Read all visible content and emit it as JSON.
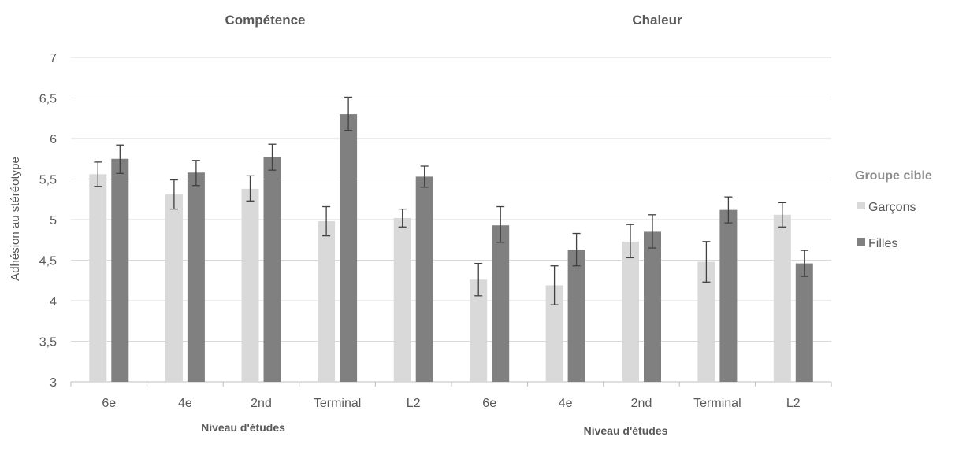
{
  "chart_data": {
    "type": "bar",
    "ylabel": "Adhésion au stéréotype",
    "ylim": [
      3,
      7
    ],
    "yticks": [
      "3",
      "3,5",
      "4",
      "4,5",
      "5",
      "5,5",
      "6",
      "6,5",
      "7"
    ],
    "grid": true,
    "legend": {
      "title": "Groupe cible",
      "position": "right",
      "entries": [
        {
          "name": "Garçons",
          "color": "#d9d9d9"
        },
        {
          "name": "Filles",
          "color": "#808080"
        }
      ]
    },
    "panels": [
      {
        "title": "Compétence",
        "xlabel": "Niveau d'études",
        "categories": [
          "6e",
          "4e",
          "2nd",
          "Terminal",
          "L2"
        ],
        "series": [
          {
            "name": "Garçons",
            "color": "#d9d9d9",
            "values": [
              5.56,
              5.31,
              5.38,
              4.98,
              5.02
            ],
            "error_low": [
              5.41,
              5.13,
              5.23,
              4.8,
              4.91
            ],
            "error_high": [
              5.71,
              5.49,
              5.54,
              5.16,
              5.13
            ]
          },
          {
            "name": "Filles",
            "color": "#808080",
            "values": [
              5.75,
              5.58,
              5.77,
              6.3,
              5.53
            ],
            "error_low": [
              5.57,
              5.42,
              5.61,
              6.1,
              5.4
            ],
            "error_high": [
              5.92,
              5.73,
              5.93,
              6.51,
              5.66
            ]
          }
        ]
      },
      {
        "title": "Chaleur",
        "xlabel": "Niveau d'études",
        "categories": [
          "6e",
          "4e",
          "2nd",
          "Terminal",
          "L2"
        ],
        "series": [
          {
            "name": "Garçons",
            "color": "#d9d9d9",
            "values": [
              4.26,
              4.19,
              4.73,
              4.48,
              5.06
            ],
            "error_low": [
              4.06,
              3.95,
              4.53,
              4.23,
              4.91
            ],
            "error_high": [
              4.46,
              4.43,
              4.94,
              4.73,
              5.21
            ]
          },
          {
            "name": "Filles",
            "color": "#808080",
            "values": [
              4.93,
              4.63,
              4.85,
              5.12,
              4.46
            ],
            "error_low": [
              4.72,
              4.43,
              4.65,
              4.96,
              4.3
            ],
            "error_high": [
              5.16,
              4.83,
              5.06,
              5.28,
              4.62
            ]
          }
        ]
      }
    ]
  }
}
